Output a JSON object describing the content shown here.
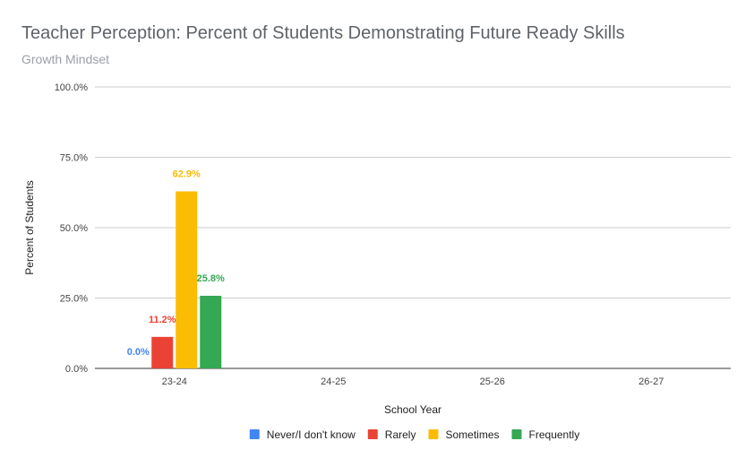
{
  "chart_data": {
    "type": "bar",
    "title": "Teacher Perception: Percent of Students Demonstrating Future Ready Skills",
    "subtitle": "Growth Mindset",
    "xlabel": "School Year",
    "ylabel": "Percent of Students",
    "categories": [
      "23-24",
      "24-25",
      "25-26",
      "26-27"
    ],
    "ylim": [
      0,
      100
    ],
    "yticks": [
      "0.0%",
      "25.0%",
      "50.0%",
      "75.0%",
      "100.0%"
    ],
    "grid": true,
    "legend_position": "bottom",
    "series": [
      {
        "name": "Never/I don't know",
        "color": "#4285f4",
        "values": [
          0.0,
          null,
          null,
          null
        ],
        "labels": [
          "0.0%",
          null,
          null,
          null
        ]
      },
      {
        "name": "Rarely",
        "color": "#ea4335",
        "values": [
          11.2,
          null,
          null,
          null
        ],
        "labels": [
          "11.2%",
          null,
          null,
          null
        ]
      },
      {
        "name": "Sometimes",
        "color": "#fbbc04",
        "values": [
          62.9,
          null,
          null,
          null
        ],
        "labels": [
          "62.9%",
          null,
          null,
          null
        ]
      },
      {
        "name": "Frequently",
        "color": "#34a853",
        "values": [
          25.8,
          null,
          null,
          null
        ],
        "labels": [
          "25.8%",
          null,
          null,
          null
        ]
      }
    ]
  }
}
